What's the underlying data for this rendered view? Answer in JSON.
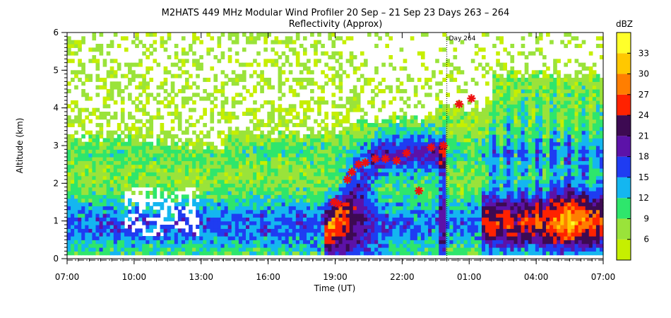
{
  "chart_data": {
    "type": "heatmap",
    "title": "M2HATS 449 MHz Modular Wind Profiler  20 Sep – 21 Sep 23 Days 263 – 264",
    "subtitle": "Reflectivity (Approx)",
    "xlabel": "Time (UT)",
    "ylabel": "Altitude (km)",
    "x_ticks": [
      "07:00",
      "10:00",
      "13:00",
      "16:00",
      "19:00",
      "22:00",
      "01:00",
      "04:00",
      "07:00"
    ],
    "x_range_hours": [
      0,
      24
    ],
    "y_ticks": [
      "0",
      "1",
      "2",
      "3",
      "4",
      "5",
      "6"
    ],
    "ylim": [
      0,
      6
    ],
    "day_marker": {
      "label": "Day 264",
      "x_hours": 17
    },
    "colorbar": {
      "label": "dBZ",
      "tick_labels": [
        "6",
        "9",
        "12",
        "15",
        "18",
        "21",
        "24",
        "27",
        "30",
        "33"
      ],
      "bins": [
        3,
        6,
        9,
        12,
        15,
        18,
        21,
        24,
        27,
        30,
        33,
        36
      ],
      "colors": [
        "#c6ef00",
        "#9ae33a",
        "#2ee66c",
        "#14b6f0",
        "#1f3cf2",
        "#5c12a8",
        "#3d0a52",
        "#ff2200",
        "#ff7e00",
        "#ffc800",
        "#ffff2a"
      ]
    },
    "markers": [
      {
        "x_hours": 11.95,
        "y": 1.5
      },
      {
        "x_hours": 12.15,
        "y": 1.45
      },
      {
        "x_hours": 12.55,
        "y": 2.1
      },
      {
        "x_hours": 12.75,
        "y": 2.3
      },
      {
        "x_hours": 13.05,
        "y": 2.5
      },
      {
        "x_hours": 13.35,
        "y": 2.55
      },
      {
        "x_hours": 13.8,
        "y": 2.65
      },
      {
        "x_hours": 14.25,
        "y": 2.65
      },
      {
        "x_hours": 14.75,
        "y": 2.6
      },
      {
        "x_hours": 15.2,
        "y": 2.8
      },
      {
        "x_hours": 15.75,
        "y": 1.8
      },
      {
        "x_hours": 16.3,
        "y": 2.95
      },
      {
        "x_hours": 16.85,
        "y": 3.0
      },
      {
        "x_hours": 17.55,
        "y": 4.1
      },
      {
        "x_hours": 18.1,
        "y": 4.25
      }
    ]
  }
}
